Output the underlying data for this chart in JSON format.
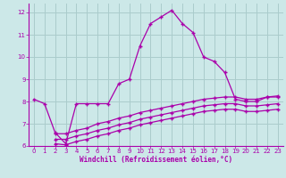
{
  "bg_color": "#cce8e8",
  "grid_color": "#aacccc",
  "line_color": "#aa00aa",
  "xlabel": "Windchill (Refroidissement éolien,°C)",
  "ylim": [
    6,
    12.4
  ],
  "xlim": [
    -0.5,
    23.5
  ],
  "yticks": [
    6,
    7,
    8,
    9,
    10,
    11,
    12
  ],
  "xticks": [
    0,
    1,
    2,
    3,
    4,
    5,
    6,
    7,
    8,
    9,
    10,
    11,
    12,
    13,
    14,
    15,
    16,
    17,
    18,
    19,
    20,
    21,
    22,
    23
  ],
  "line1_x": [
    0,
    1,
    2,
    3,
    4,
    5,
    6,
    7,
    8,
    9,
    10,
    11,
    12,
    13,
    14,
    15,
    16,
    17,
    18,
    19,
    20,
    21,
    22,
    23
  ],
  "line1_y": [
    8.1,
    7.9,
    6.6,
    6.1,
    7.9,
    7.9,
    7.9,
    7.9,
    8.8,
    9.0,
    10.5,
    11.5,
    11.8,
    12.1,
    11.5,
    11.1,
    10.0,
    9.8,
    9.3,
    8.1,
    8.0,
    8.0,
    8.2,
    8.2
  ],
  "line2_x": [
    2,
    3,
    4,
    5,
    6,
    7,
    8,
    9,
    10,
    11,
    12,
    13,
    14,
    15,
    16,
    17,
    18,
    19,
    20,
    21,
    22,
    23
  ],
  "line2_y": [
    6.55,
    6.55,
    6.7,
    6.8,
    7.0,
    7.1,
    7.25,
    7.35,
    7.5,
    7.6,
    7.7,
    7.8,
    7.9,
    8.0,
    8.1,
    8.15,
    8.2,
    8.2,
    8.1,
    8.1,
    8.2,
    8.25
  ],
  "line3_x": [
    2,
    3,
    4,
    5,
    6,
    7,
    8,
    9,
    10,
    11,
    12,
    13,
    14,
    15,
    16,
    17,
    18,
    19,
    20,
    21,
    22,
    23
  ],
  "line3_y": [
    6.3,
    6.3,
    6.45,
    6.55,
    6.7,
    6.8,
    6.95,
    7.05,
    7.2,
    7.3,
    7.4,
    7.5,
    7.6,
    7.7,
    7.8,
    7.85,
    7.9,
    7.9,
    7.8,
    7.8,
    7.85,
    7.9
  ],
  "line4_x": [
    2,
    3,
    4,
    5,
    6,
    7,
    8,
    9,
    10,
    11,
    12,
    13,
    14,
    15,
    16,
    17,
    18,
    19,
    20,
    21,
    22,
    23
  ],
  "line4_y": [
    6.1,
    6.05,
    6.2,
    6.3,
    6.45,
    6.55,
    6.7,
    6.8,
    6.95,
    7.05,
    7.15,
    7.25,
    7.35,
    7.45,
    7.55,
    7.6,
    7.65,
    7.65,
    7.55,
    7.55,
    7.6,
    7.65
  ]
}
